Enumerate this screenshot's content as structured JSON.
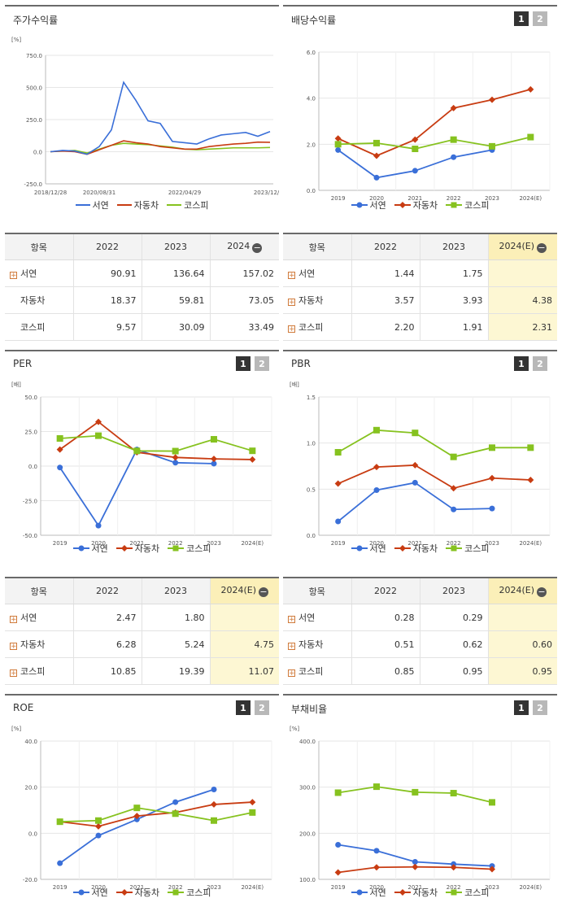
{
  "legend": [
    "서연",
    "자동차",
    "코스피"
  ],
  "series_colors": [
    "#3a6fd8",
    "#c83c12",
    "#86c21f"
  ],
  "charts": [
    {
      "type": "line",
      "title": "주가수익률",
      "unit": "[%]",
      "ylim": [
        -250,
        750
      ],
      "yticks": [
        "750.0",
        "500.0",
        "250.0",
        "0.0",
        "-250.0"
      ],
      "xticks": [
        "2018/12/28",
        "2020/08/31",
        "2022/04/29",
        "2023/12/28"
      ],
      "has_pager": false
    },
    {
      "type": "line",
      "title": "배당수익률",
      "unit": "",
      "ylim": [
        0,
        6
      ],
      "yticks": [
        "6.0",
        "4.0",
        "2.0",
        "0.0"
      ],
      "categories": [
        "2019",
        "2020",
        "2021",
        "2022",
        "2023",
        "2024(E)"
      ],
      "has_pager": true,
      "series": [
        {
          "name": "서연",
          "values": [
            1.75,
            0.55,
            0.85,
            1.44,
            1.75,
            null
          ]
        },
        {
          "name": "자동차",
          "values": [
            2.25,
            1.5,
            2.2,
            3.57,
            3.93,
            4.38
          ]
        },
        {
          "name": "코스피",
          "values": [
            2.0,
            2.05,
            1.8,
            2.2,
            1.91,
            2.31
          ]
        }
      ]
    },
    {
      "type": "line",
      "title": "PER",
      "unit": "[배]",
      "ylim": [
        -50,
        50
      ],
      "yticks": [
        "50.0",
        "25.0",
        "0.0",
        "-25.0",
        "-50.0"
      ],
      "categories": [
        "2019",
        "2020",
        "2021",
        "2022",
        "2023",
        "2024(E)"
      ],
      "has_pager": true,
      "series": [
        {
          "name": "서연",
          "values": [
            -1,
            -43,
            12,
            2.47,
            1.8,
            null
          ]
        },
        {
          "name": "자동차",
          "values": [
            12,
            32,
            10,
            6.28,
            5.24,
            4.75
          ]
        },
        {
          "name": "코스피",
          "values": [
            20,
            22,
            11,
            10.85,
            19.39,
            11.07
          ]
        }
      ]
    },
    {
      "type": "line",
      "title": "PBR",
      "unit": "[배]",
      "ylim": [
        0,
        1.5
      ],
      "yticks": [
        "1.5",
        "1.0",
        "0.5",
        "0.0"
      ],
      "categories": [
        "2019",
        "2020",
        "2021",
        "2022",
        "2023",
        "2024(E)"
      ],
      "has_pager": true,
      "series": [
        {
          "name": "서연",
          "values": [
            0.15,
            0.49,
            0.57,
            0.28,
            0.29,
            null
          ]
        },
        {
          "name": "자동차",
          "values": [
            0.56,
            0.74,
            0.76,
            0.51,
            0.62,
            0.6
          ]
        },
        {
          "name": "코스피",
          "values": [
            0.9,
            1.14,
            1.11,
            0.85,
            0.95,
            0.95
          ]
        }
      ]
    },
    {
      "type": "line",
      "title": "ROE",
      "unit": "[%]",
      "ylim": [
        -20,
        40
      ],
      "yticks": [
        "40.0",
        "20.0",
        "0.0",
        "-20.0"
      ],
      "categories": [
        "2019",
        "2020",
        "2021",
        "2022",
        "2023",
        "2024(E)"
      ],
      "has_pager": true,
      "series": [
        {
          "name": "서연",
          "values": [
            -13,
            -1,
            6,
            13.5,
            19,
            null
          ]
        },
        {
          "name": "자동차",
          "values": [
            5,
            3,
            7.5,
            9,
            12.5,
            13.5
          ]
        },
        {
          "name": "코스피",
          "values": [
            5,
            5.5,
            11,
            8.5,
            5.5,
            9
          ]
        }
      ]
    },
    {
      "type": "line",
      "title": "부채비율",
      "unit": "[%]",
      "ylim": [
        100,
        400
      ],
      "yticks": [
        "400.0",
        "300.0",
        "200.0",
        "100.0"
      ],
      "categories": [
        "2019",
        "2020",
        "2021",
        "2022",
        "2023",
        "2024(E)"
      ],
      "has_pager": true,
      "series": [
        {
          "name": "서연",
          "values": [
            175,
            162,
            138,
            133,
            129,
            null
          ]
        },
        {
          "name": "자동차",
          "values": [
            115,
            126,
            127,
            126,
            122,
            null
          ]
        },
        {
          "name": "코스피",
          "values": [
            288,
            301,
            289,
            287,
            267,
            null
          ]
        }
      ]
    }
  ],
  "pager": [
    "1",
    "2"
  ],
  "tables": [
    {
      "headers": [
        "항목",
        "2022",
        "2023",
        "2024"
      ],
      "est_col": false,
      "rows": [
        {
          "name": "서연",
          "plus": true,
          "values": [
            "90.91",
            "136.64",
            "157.02"
          ]
        },
        {
          "name": "자동차",
          "plus": false,
          "values": [
            "18.37",
            "59.81",
            "73.05"
          ]
        },
        {
          "name": "코스피",
          "plus": false,
          "values": [
            "9.57",
            "30.09",
            "33.49"
          ]
        }
      ]
    },
    {
      "headers": [
        "항목",
        "2022",
        "2023",
        "2024(E)"
      ],
      "est_col": true,
      "rows": [
        {
          "name": "서연",
          "plus": true,
          "values": [
            "1.44",
            "1.75",
            ""
          ]
        },
        {
          "name": "자동차",
          "plus": true,
          "values": [
            "3.57",
            "3.93",
            "4.38"
          ]
        },
        {
          "name": "코스피",
          "plus": true,
          "values": [
            "2.20",
            "1.91",
            "2.31"
          ]
        }
      ]
    },
    {
      "headers": [
        "항목",
        "2022",
        "2023",
        "2024(E)"
      ],
      "est_col": true,
      "rows": [
        {
          "name": "서연",
          "plus": true,
          "values": [
            "2.47",
            "1.80",
            ""
          ]
        },
        {
          "name": "자동차",
          "plus": true,
          "values": [
            "6.28",
            "5.24",
            "4.75"
          ]
        },
        {
          "name": "코스피",
          "plus": true,
          "values": [
            "10.85",
            "19.39",
            "11.07"
          ]
        }
      ]
    },
    {
      "headers": [
        "항목",
        "2022",
        "2023",
        "2024(E)"
      ],
      "est_col": true,
      "rows": [
        {
          "name": "서연",
          "plus": true,
          "values": [
            "0.28",
            "0.29",
            ""
          ]
        },
        {
          "name": "자동차",
          "plus": true,
          "values": [
            "0.51",
            "0.62",
            "0.60"
          ]
        },
        {
          "name": "코스피",
          "plus": true,
          "values": [
            "0.85",
            "0.95",
            "0.95"
          ]
        }
      ]
    }
  ],
  "chart_data": [
    {
      "type": "line",
      "title": "주가수익률",
      "ylabel": "[%]",
      "ylim": [
        -250,
        750
      ],
      "x": [
        "2018/12/28",
        "2019/06",
        "2019/12",
        "2020/03",
        "2020/08/31",
        "2020/12",
        "2021/01",
        "2021/03",
        "2021/06",
        "2021/09",
        "2021/12",
        "2022/04/29",
        "2022/07",
        "2022/10",
        "2023/01",
        "2023/04",
        "2023/07",
        "2023/10",
        "2023/12/28"
      ],
      "series": [
        {
          "name": "서연",
          "values": [
            0,
            10,
            5,
            -20,
            40,
            170,
            540,
            400,
            240,
            220,
            80,
            70,
            60,
            100,
            130,
            140,
            150,
            120,
            157
          ]
        },
        {
          "name": "자동차",
          "values": [
            0,
            5,
            0,
            -20,
            15,
            50,
            85,
            70,
            60,
            40,
            30,
            20,
            20,
            40,
            50,
            60,
            65,
            75,
            73
          ]
        },
        {
          "name": "코스피",
          "values": [
            0,
            5,
            10,
            -10,
            20,
            50,
            65,
            60,
            55,
            45,
            35,
            20,
            15,
            20,
            25,
            30,
            30,
            30,
            33
          ]
        }
      ]
    }
  ]
}
